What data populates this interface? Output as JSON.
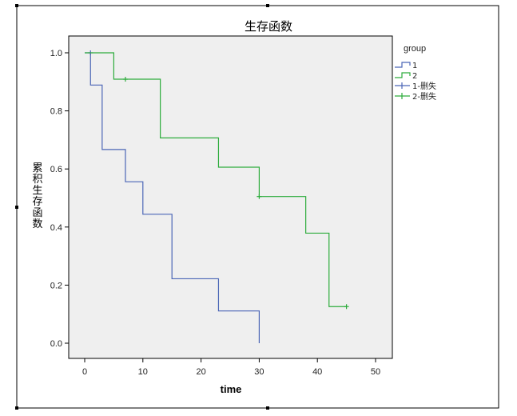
{
  "chart_data": {
    "type": "line",
    "step": true,
    "title": "生存函数",
    "xlabel": "time",
    "ylabel": "累积生存函数",
    "xlim": [
      0,
      50
    ],
    "ylim": [
      0,
      1
    ],
    "xticks": [
      "0",
      "10",
      "20",
      "30",
      "40",
      "50"
    ],
    "yticks": [
      "0.0",
      "0.2",
      "0.4",
      "0.6",
      "0.8",
      "1.0"
    ],
    "grid": false,
    "legend": {
      "title": "group",
      "placement": "right",
      "entries": [
        "1",
        "2",
        "1-删失",
        "2-删失"
      ]
    },
    "series": [
      {
        "name": "1",
        "color": "#4b66b6",
        "x": [
          1,
          3,
          7,
          10,
          15,
          23,
          30
        ],
        "y": [
          0.889,
          0.667,
          0.556,
          0.444,
          0.222,
          0.111,
          0.0
        ],
        "censored": [
          {
            "x": 1,
            "y": 1.0
          }
        ]
      },
      {
        "name": "2",
        "color": "#2dac3c",
        "x": [
          5,
          13,
          23,
          30,
          38,
          42
        ],
        "y": [
          0.909,
          0.707,
          0.606,
          0.505,
          0.379,
          0.126
        ],
        "censored": [
          {
            "x": 7,
            "y": 0.909
          },
          {
            "x": 30,
            "y": 0.505
          },
          {
            "x": 45,
            "y": 0.126
          }
        ]
      }
    ]
  }
}
